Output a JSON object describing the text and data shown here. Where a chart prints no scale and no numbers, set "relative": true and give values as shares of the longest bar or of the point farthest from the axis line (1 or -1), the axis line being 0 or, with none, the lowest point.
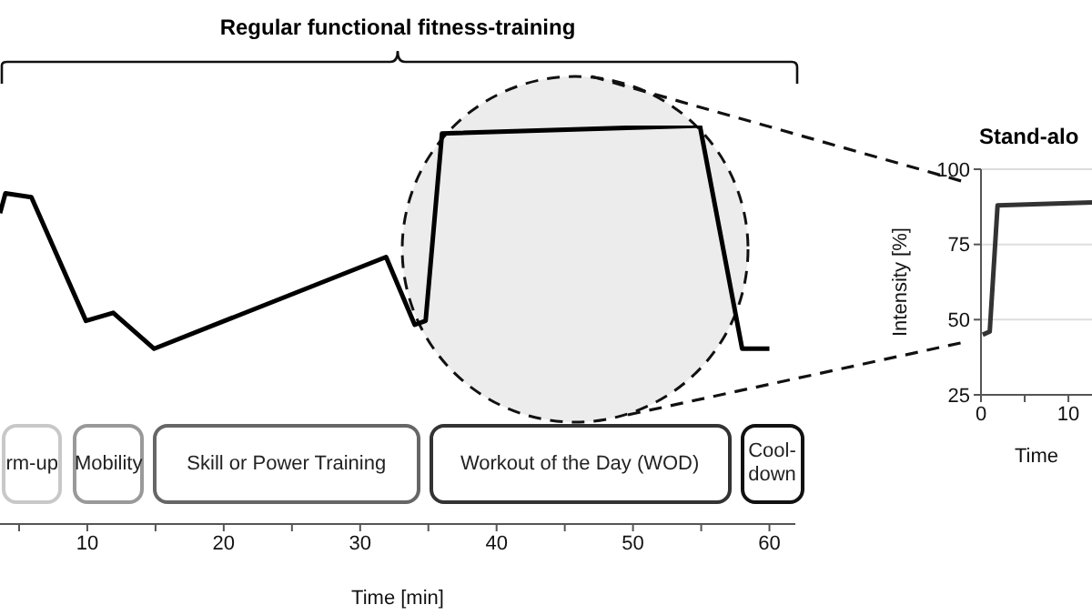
{
  "chart_data": [
    {
      "type": "line",
      "title": "Regular functional fitness-training",
      "xlabel": "Time [min]",
      "relative": true,
      "tick_labels": "x",
      "color": "#000000",
      "x": [
        3.6,
        4.0,
        5.9,
        9.9,
        11.9,
        14.9,
        31.9,
        34.0,
        34.8,
        36.0,
        54.9,
        58.0,
        60.0
      ],
      "values": [
        0.78,
        0.83,
        0.82,
        0.51,
        0.53,
        0.44,
        0.67,
        0.5,
        0.51,
        0.98,
        1,
        0.44,
        0.44
      ],
      "xlim": [
        3.6,
        61.9
      ],
      "xticks": [
        {
          "value": 5,
          "label": null
        },
        10,
        {
          "value": 15,
          "label": null
        },
        20,
        {
          "value": 25,
          "label": null
        },
        30,
        {
          "value": 35,
          "label": null
        },
        40,
        {
          "value": 45,
          "label": null
        },
        50,
        {
          "value": 55,
          "label": null
        },
        60
      ],
      "bands": [
        {
          "axis": "x",
          "from": 3.6,
          "to": 8.3,
          "label": "rm-up",
          "color": "#c8c8c8"
        },
        {
          "axis": "x",
          "from": 8.8,
          "to": 14.3,
          "label": "Mobility",
          "color": "#999999"
        },
        {
          "axis": "x",
          "from": 14.7,
          "to": 34.5,
          "label": "Skill or Power Training",
          "color": "#666666"
        },
        {
          "axis": "x",
          "from": 34.9,
          "to": 57.3,
          "label": "Workout of the Day (WOD)",
          "color": "#333333"
        },
        {
          "axis": "x",
          "from": 57.7,
          "to": 62.7,
          "label": "Cool-down",
          "color": "#111111"
        }
      ]
    },
    {
      "type": "line",
      "title": "Stand-alo",
      "xlabel": "Time",
      "ylabel": "Intensity [%]",
      "color": "#333333",
      "grid": "y",
      "x": [
        0.2,
        1.0,
        1.9,
        12.7
      ],
      "values": [
        45,
        46,
        88,
        89
      ],
      "xlim": [
        0,
        12.7
      ],
      "xticks": [
        0,
        {
          "value": 5,
          "label": null
        },
        10
      ],
      "ylim": [
        25,
        100
      ],
      "yticks": [
        25,
        50,
        75,
        100
      ]
    }
  ]
}
